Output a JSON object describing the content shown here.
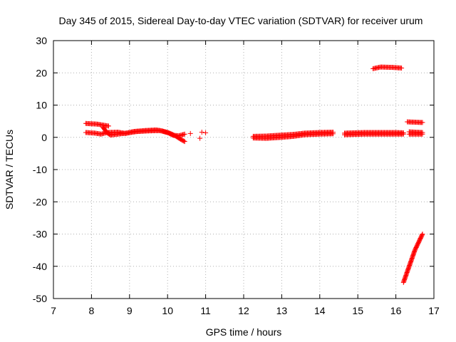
{
  "chart_data": {
    "type": "scatter",
    "title": "Day 345 of 2015, Sidereal Day-to-day VTEC variation (SDTVAR) for receiver urum",
    "xlabel": "GPS time / hours",
    "ylabel": "SDTVAR / TECUs",
    "xlim": [
      7,
      17
    ],
    "ylim": [
      -50,
      30
    ],
    "xticks": [
      7,
      8,
      9,
      10,
      11,
      12,
      13,
      14,
      15,
      16,
      17
    ],
    "yticks": [
      -50,
      -40,
      -30,
      -20,
      -10,
      0,
      10,
      20,
      30
    ],
    "grid": true,
    "legend": "none",
    "marker": "plus",
    "marker_color": "#ff0000",
    "series": [
      {
        "segments": [
          [
            [
              7.85,
              4.3
            ],
            [
              8.15,
              4.1
            ],
            [
              8.45,
              3.5
            ]
          ],
          [
            [
              7.85,
              1.5
            ],
            [
              8.1,
              1.3
            ],
            [
              8.25,
              1.0
            ],
            [
              8.4,
              1.5
            ],
            [
              8.7,
              1.6
            ],
            [
              8.9,
              1.2
            ],
            [
              9.1,
              1.8
            ],
            [
              9.4,
              2.1
            ],
            [
              9.7,
              2.3
            ],
            [
              9.85,
              2.0
            ],
            [
              10.05,
              1.3
            ],
            [
              10.2,
              0.5
            ],
            [
              10.3,
              -0.3
            ],
            [
              10.45,
              -1.3
            ]
          ],
          [
            [
              8.3,
              3.2
            ],
            [
              8.4,
              1.5
            ],
            [
              8.5,
              0.7
            ],
            [
              8.7,
              1.0
            ],
            [
              8.9,
              1.3
            ],
            [
              9.2,
              1.8
            ],
            [
              9.5,
              2.0
            ],
            [
              9.8,
              2.1
            ],
            [
              10.0,
              1.5
            ],
            [
              10.15,
              0.6
            ],
            [
              10.3,
              0.5
            ],
            [
              10.45,
              1.0
            ]
          ],
          [
            [
              12.25,
              -0.2
            ],
            [
              12.6,
              -0.3
            ],
            [
              13.0,
              0.0
            ],
            [
              13.3,
              0.3
            ],
            [
              13.6,
              0.8
            ],
            [
              14.0,
              1.0
            ],
            [
              14.35,
              1.1
            ]
          ],
          [
            [
              12.25,
              0.3
            ],
            [
              12.6,
              0.4
            ],
            [
              13.0,
              0.7
            ],
            [
              13.3,
              0.9
            ],
            [
              13.6,
              1.3
            ],
            [
              14.0,
              1.5
            ],
            [
              14.35,
              1.6
            ]
          ],
          [
            [
              14.65,
              0.8
            ],
            [
              14.9,
              0.9
            ],
            [
              15.2,
              1.0
            ],
            [
              15.6,
              1.0
            ],
            [
              16.0,
              1.0
            ],
            [
              16.2,
              1.0
            ]
          ],
          [
            [
              14.65,
              1.3
            ],
            [
              14.9,
              1.4
            ],
            [
              15.2,
              1.5
            ],
            [
              15.6,
              1.5
            ],
            [
              16.0,
              1.5
            ],
            [
              16.2,
              1.4
            ]
          ],
          [
            [
              15.4,
              21.3
            ],
            [
              15.6,
              21.8
            ],
            [
              15.9,
              21.7
            ],
            [
              16.15,
              21.5
            ]
          ],
          [
            [
              16.3,
              4.8
            ],
            [
              16.5,
              4.7
            ],
            [
              16.7,
              4.6
            ]
          ],
          [
            [
              16.35,
              1.0
            ],
            [
              16.5,
              1.0
            ],
            [
              16.7,
              1.0
            ]
          ],
          [
            [
              16.35,
              1.7
            ],
            [
              16.5,
              1.6
            ],
            [
              16.7,
              1.5
            ]
          ],
          [
            [
              16.2,
              -45
            ],
            [
              16.35,
              -40
            ],
            [
              16.5,
              -35
            ],
            [
              16.7,
              -30
            ]
          ]
        ],
        "points": [
          [
            10.6,
            1.2
          ],
          [
            10.85,
            -0.3
          ],
          [
            10.9,
            1.6
          ],
          [
            11.0,
            1.4
          ]
        ]
      }
    ]
  }
}
